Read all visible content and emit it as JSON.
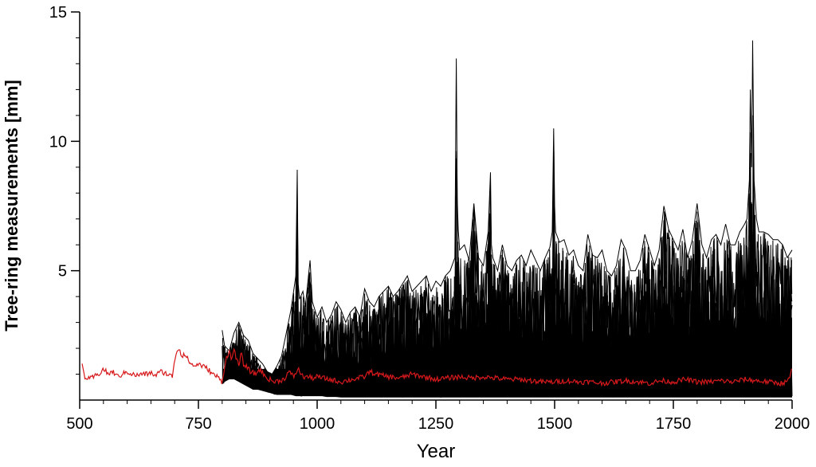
{
  "chart_data": {
    "type": "line",
    "title": "",
    "xlabel": "Year",
    "ylabel": "Tree-ring measurements [mm]",
    "xlim": [
      500,
      2000
    ],
    "ylim": [
      0,
      15
    ],
    "x_ticks": [
      500,
      750,
      1000,
      1250,
      1500,
      1750,
      2000
    ],
    "x_tick_labels": [
      "500",
      "750",
      "1000",
      "1250",
      "1500",
      "1750",
      "2000"
    ],
    "x_minor_step": 50,
    "y_ticks": [
      5,
      10,
      15
    ],
    "y_tick_labels": [
      "5",
      "10",
      "15"
    ],
    "y_minor_step": 1,
    "grid": false,
    "legend": "none",
    "colors": {
      "individual_series": "#000000",
      "mean_series": "#d7191c"
    },
    "series": [
      {
        "color": "#000000",
        "style": "individual tree-ring series (many overlapping)",
        "x": [
          800,
          805,
          815,
          825,
          835,
          845,
          855,
          865,
          875,
          885,
          895,
          905,
          915,
          925,
          935,
          945,
          955,
          958,
          960,
          963,
          970,
          975,
          980,
          985,
          990,
          995,
          1000,
          1010,
          1020,
          1030,
          1040,
          1050,
          1060,
          1070,
          1080,
          1090,
          1100,
          1110,
          1120,
          1130,
          1140,
          1150,
          1160,
          1170,
          1180,
          1190,
          1200,
          1210,
          1220,
          1230,
          1240,
          1250,
          1260,
          1270,
          1280,
          1290,
          1293,
          1295,
          1297,
          1300,
          1310,
          1320,
          1330,
          1340,
          1350,
          1360,
          1365,
          1367,
          1370,
          1380,
          1390,
          1400,
          1410,
          1420,
          1430,
          1440,
          1450,
          1460,
          1470,
          1480,
          1490,
          1495,
          1498,
          1500,
          1502,
          1510,
          1520,
          1530,
          1540,
          1550,
          1560,
          1570,
          1580,
          1590,
          1600,
          1610,
          1620,
          1630,
          1640,
          1650,
          1660,
          1670,
          1680,
          1690,
          1700,
          1710,
          1720,
          1730,
          1740,
          1750,
          1760,
          1770,
          1780,
          1790,
          1800,
          1810,
          1820,
          1830,
          1840,
          1850,
          1860,
          1870,
          1880,
          1890,
          1900,
          1905,
          1910,
          1912,
          1915,
          1917,
          1920,
          1925,
          1930,
          1940,
          1950,
          1960,
          1970,
          1980,
          1990,
          2000
        ],
        "upper": [
          2.7,
          2.1,
          1.9,
          2.6,
          3.0,
          2.5,
          2.3,
          1.8,
          1.6,
          1.4,
          1.1,
          1.0,
          1.3,
          1.7,
          2.6,
          3.5,
          4.8,
          8.9,
          4.5,
          3.9,
          4.2,
          3.6,
          4.5,
          5.4,
          3.8,
          3.5,
          3.2,
          3.6,
          3.0,
          3.3,
          3.8,
          3.5,
          3.0,
          3.4,
          3.6,
          3.2,
          4.3,
          3.8,
          3.6,
          4.0,
          4.2,
          4.4,
          4.0,
          4.2,
          4.5,
          4.8,
          4.2,
          4.4,
          4.6,
          4.8,
          4.2,
          4.6,
          4.4,
          4.8,
          5.0,
          5.5,
          13.2,
          7.8,
          6.6,
          5.8,
          6.0,
          5.4,
          7.6,
          5.5,
          5.2,
          6.5,
          8.8,
          6.0,
          5.5,
          5.0,
          6.0,
          5.2,
          5.0,
          5.4,
          5.6,
          5.2,
          5.8,
          5.4,
          5.0,
          5.5,
          5.9,
          6.5,
          10.5,
          7.5,
          6.5,
          6.1,
          6.2,
          5.6,
          5.8,
          5.2,
          5.0,
          6.4,
          5.6,
          5.5,
          5.8,
          5.0,
          4.8,
          5.2,
          6.2,
          5.8,
          5.0,
          5.0,
          5.4,
          6.4,
          5.8,
          5.2,
          5.8,
          7.5,
          6.6,
          6.2,
          5.8,
          6.6,
          5.5,
          6.2,
          7.6,
          6.0,
          5.5,
          6.2,
          6.4,
          6.0,
          6.8,
          6.0,
          6.0,
          6.5,
          6.8,
          7.0,
          8.5,
          12.0,
          9.0,
          13.9,
          8.5,
          7.0,
          6.5,
          6.5,
          6.4,
          6.2,
          6.2,
          6.0,
          5.5,
          5.8
        ],
        "lower": [
          0.6,
          0.7,
          0.8,
          0.8,
          0.7,
          0.6,
          0.5,
          0.4,
          0.4,
          0.35,
          0.3,
          0.25,
          0.2,
          0.2,
          0.2,
          0.2,
          0.15,
          0.15,
          0.15,
          0.15,
          0.15,
          0.15,
          0.15,
          0.15,
          0.15,
          0.15,
          0.15,
          0.15,
          0.12,
          0.12,
          0.12,
          0.1,
          0.1,
          0.1,
          0.1,
          0.1,
          0.1,
          0.1,
          0.1,
          0.1,
          0.1,
          0.1,
          0.1,
          0.1,
          0.1,
          0.1,
          0.1,
          0.1,
          0.1,
          0.1,
          0.1,
          0.1,
          0.1,
          0.1,
          0.1,
          0.1,
          0.1,
          0.1,
          0.1,
          0.1,
          0.1,
          0.1,
          0.1,
          0.1,
          0.1,
          0.1,
          0.1,
          0.1,
          0.1,
          0.1,
          0.1,
          0.1,
          0.1,
          0.1,
          0.1,
          0.1,
          0.1,
          0.1,
          0.1,
          0.1,
          0.1,
          0.1,
          0.1,
          0.1,
          0.1,
          0.1,
          0.1,
          0.1,
          0.1,
          0.1,
          0.1,
          0.1,
          0.1,
          0.1,
          0.1,
          0.1,
          0.1,
          0.1,
          0.1,
          0.1,
          0.1,
          0.1,
          0.1,
          0.1,
          0.1,
          0.1,
          0.1,
          0.1,
          0.1,
          0.1,
          0.1,
          0.1,
          0.1,
          0.1,
          0.1,
          0.1,
          0.1,
          0.1,
          0.1,
          0.1,
          0.1,
          0.1,
          0.1,
          0.1,
          0.1,
          0.1,
          0.1,
          0.1,
          0.1,
          0.1,
          0.1,
          0.1,
          0.1,
          0.1,
          0.1,
          0.1,
          0.1,
          0.1,
          0.1,
          0.1
        ]
      },
      {
        "color": "#d7191c",
        "style": "mean series",
        "x": [
          505,
          510,
          520,
          530,
          540,
          550,
          560,
          570,
          580,
          590,
          600,
          610,
          620,
          630,
          640,
          650,
          660,
          670,
          680,
          690,
          695,
          700,
          705,
          710,
          715,
          720,
          730,
          740,
          750,
          760,
          770,
          780,
          790,
          800,
          805,
          810,
          815,
          820,
          825,
          830,
          835,
          840,
          845,
          850,
          860,
          870,
          880,
          890,
          900,
          910,
          920,
          930,
          940,
          950,
          960,
          965,
          970,
          980,
          990,
          1000,
          1025,
          1050,
          1075,
          1100,
          1110,
          1125,
          1150,
          1175,
          1200,
          1225,
          1250,
          1275,
          1300,
          1325,
          1350,
          1375,
          1400,
          1425,
          1450,
          1475,
          1500,
          1525,
          1550,
          1575,
          1600,
          1625,
          1650,
          1675,
          1700,
          1725,
          1750,
          1775,
          1800,
          1825,
          1850,
          1875,
          1900,
          1925,
          1950,
          1975,
          1990,
          1995,
          2000
        ],
        "values": [
          1.4,
          0.9,
          0.8,
          0.9,
          1.0,
          1.2,
          1.0,
          1.1,
          0.9,
          1.0,
          1.1,
          1.0,
          0.95,
          1.0,
          1.0,
          1.05,
          0.95,
          1.1,
          1.05,
          0.95,
          0.9,
          1.6,
          1.9,
          2.0,
          1.7,
          1.8,
          1.5,
          1.3,
          1.4,
          1.3,
          1.2,
          1.0,
          0.9,
          0.7,
          1.3,
          1.7,
          1.9,
          1.5,
          2.0,
          1.6,
          1.3,
          1.8,
          1.4,
          1.3,
          1.1,
          1.0,
          1.2,
          0.9,
          0.8,
          0.7,
          0.75,
          0.8,
          1.1,
          0.9,
          1.2,
          1.05,
          0.9,
          0.9,
          0.85,
          0.9,
          0.8,
          0.7,
          0.8,
          0.9,
          1.1,
          1.0,
          0.9,
          0.85,
          1.0,
          0.9,
          0.8,
          0.85,
          0.9,
          0.85,
          0.9,
          0.85,
          0.8,
          0.8,
          0.75,
          0.7,
          0.7,
          0.75,
          0.7,
          0.7,
          0.65,
          0.7,
          0.75,
          0.7,
          0.65,
          0.75,
          0.7,
          0.8,
          0.7,
          0.7,
          0.75,
          0.7,
          0.8,
          0.75,
          0.7,
          0.65,
          0.7,
          0.9,
          1.2
        ]
      }
    ]
  }
}
